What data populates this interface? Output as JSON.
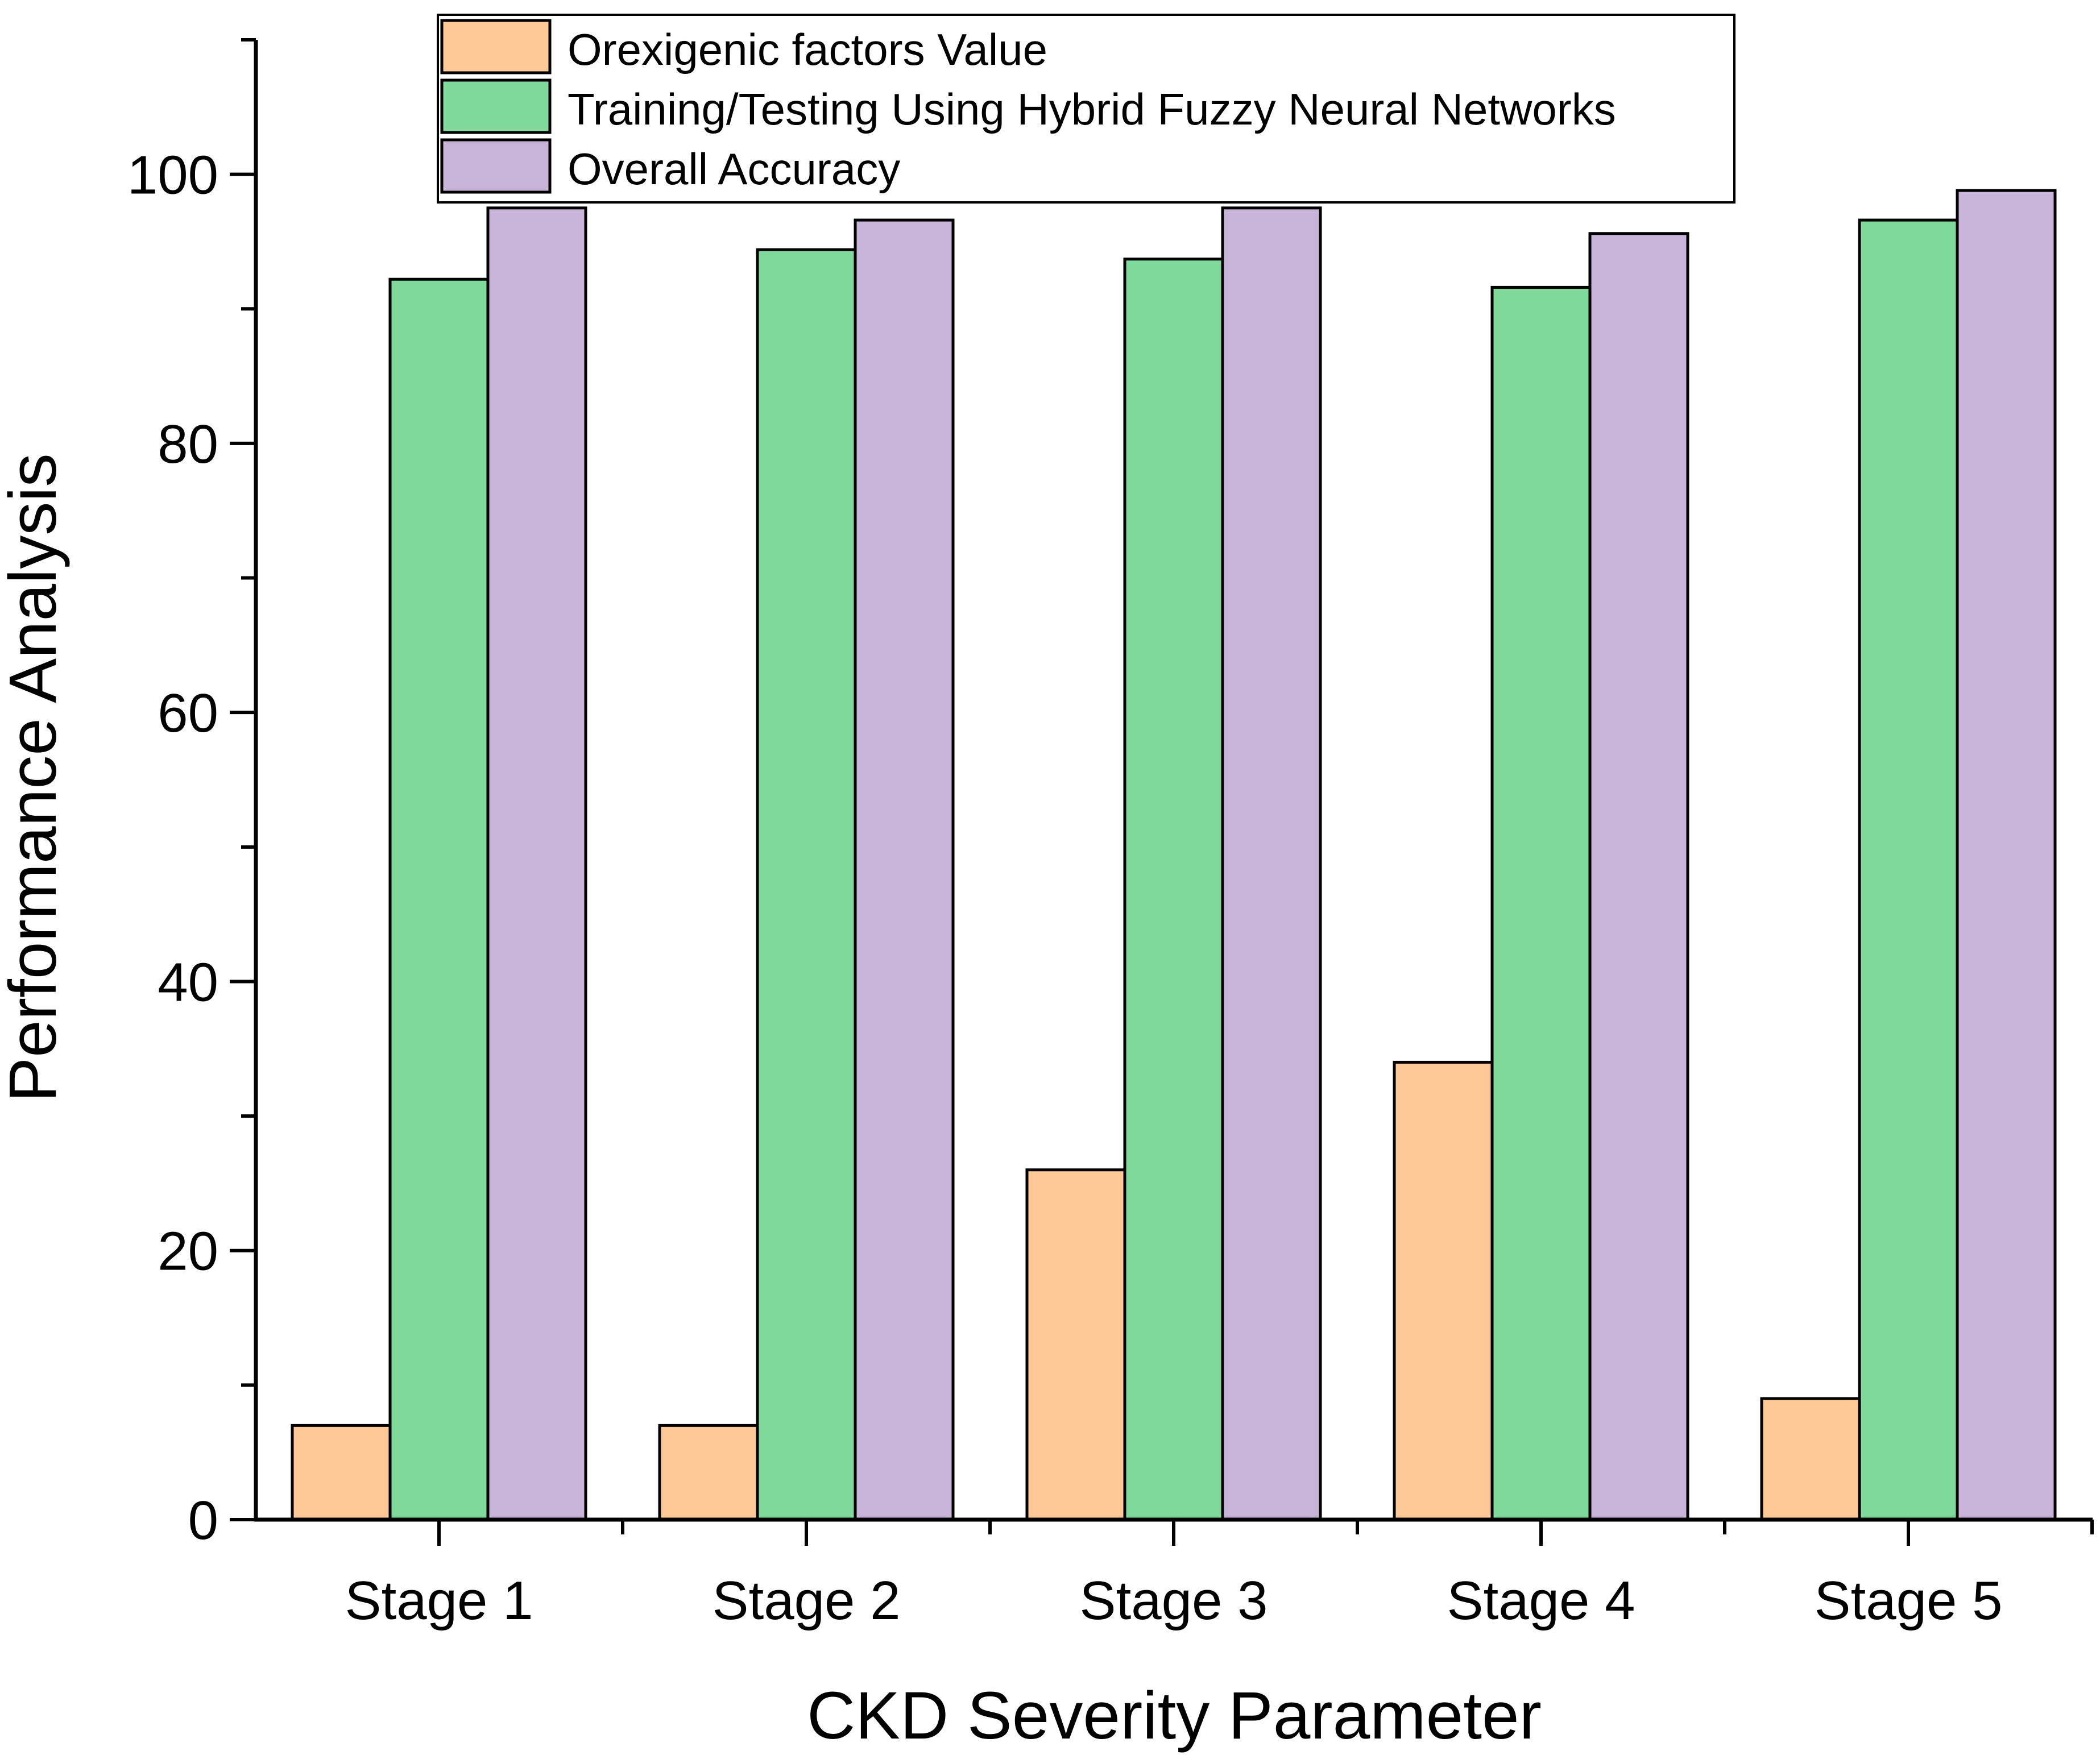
{
  "chart_data": {
    "type": "bar",
    "title": "",
    "xlabel": "CKD Severity Parameter",
    "ylabel": "Performance Analysis",
    "categories": [
      "Stage 1",
      "Stage 2",
      "Stage 3",
      "Stage 4",
      "Stage 5"
    ],
    "series": [
      {
        "name": "Orexigenic factors Value",
        "color": "#FFC896",
        "values": [
          7,
          7,
          26,
          34,
          9
        ]
      },
      {
        "name": "Training/Testing Using Hybrid Fuzzy Neural Networks",
        "color": "#7FD99A",
        "values": [
          92.2,
          94.4,
          93.7,
          91.6,
          96.6
        ]
      },
      {
        "name": "Overall Accuracy",
        "color": "#C8B4D9",
        "values": [
          97.5,
          96.6,
          97.5,
          95.6,
          98.8
        ]
      }
    ],
    "ylim": [
      0,
      110
    ],
    "yticks": [
      0,
      20,
      40,
      60,
      80,
      100
    ],
    "grid": false,
    "legend": "top-center"
  }
}
